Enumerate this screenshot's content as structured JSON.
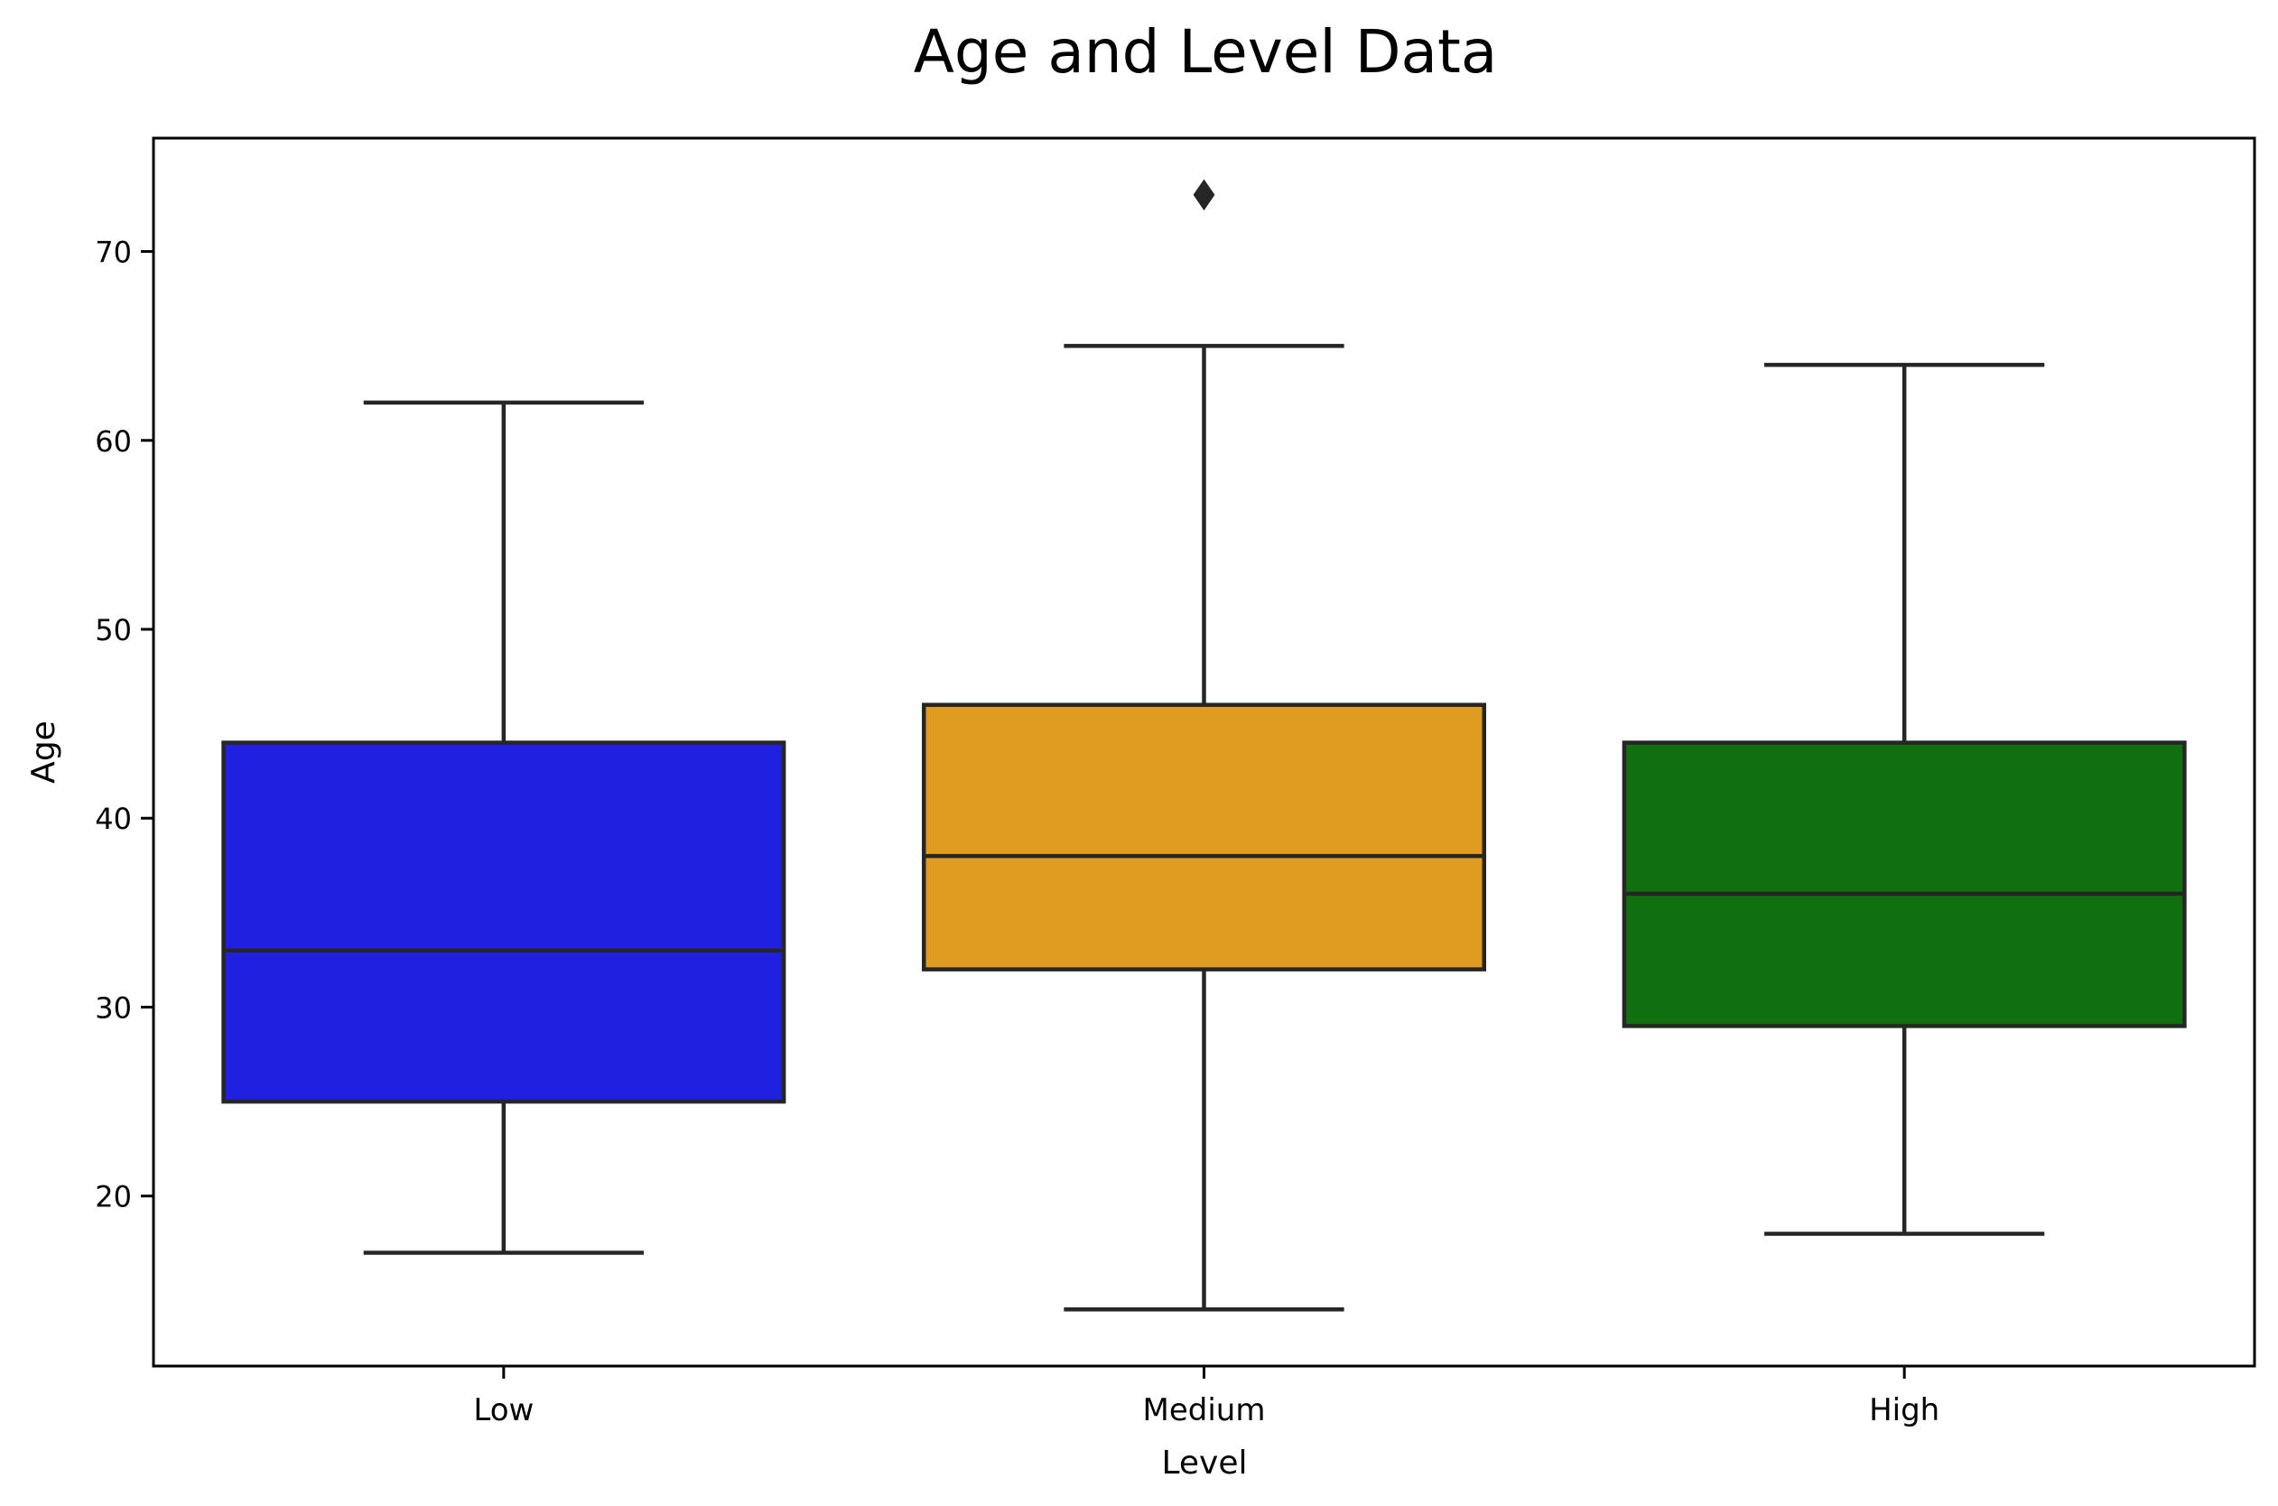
{
  "chart_data": {
    "type": "box",
    "title": "Age and Level Data",
    "xlabel": "Level",
    "ylabel": "Age",
    "ylim": [
      11,
      76
    ],
    "yticks": [
      20,
      30,
      40,
      50,
      60,
      70
    ],
    "grid": false,
    "legend": "none",
    "categories": [
      "Low",
      "Medium",
      "High"
    ],
    "boxes": [
      {
        "category": "Low",
        "color": "#2020E0",
        "whisker_low": 17,
        "q1": 25,
        "median": 33,
        "q3": 44,
        "whisker_high": 62,
        "outliers": []
      },
      {
        "category": "Medium",
        "color": "#E09C20",
        "whisker_low": 14,
        "q1": 32,
        "median": 38,
        "q3": 46,
        "whisker_high": 65,
        "outliers": [
          73
        ]
      },
      {
        "category": "High",
        "color": "#107010",
        "whisker_low": 18,
        "q1": 29,
        "median": 36,
        "q3": 44,
        "whisker_high": 64,
        "outliers": []
      }
    ]
  }
}
